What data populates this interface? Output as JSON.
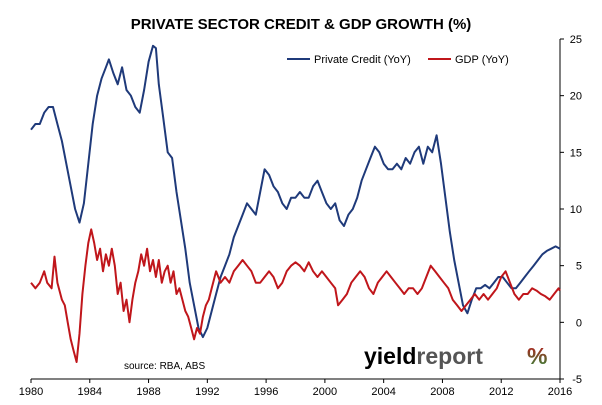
{
  "chart_data": {
    "type": "line",
    "title": "PRIVATE SECTOR CREDIT & GDP GROWTH (%)",
    "xlabel": "",
    "ylabel": "",
    "x_ticks": [
      "1980",
      "1984",
      "1988",
      "1992",
      "1996",
      "2000",
      "2004",
      "2008",
      "2012",
      "2016"
    ],
    "y_ticks": [
      "25",
      "20",
      "15",
      "10",
      "5",
      "0",
      "-5"
    ],
    "xlim": [
      1980,
      2016
    ],
    "ylim": [
      -5,
      25
    ],
    "y_axis_position": "right",
    "grid": false,
    "legend_position": "top-right",
    "series": [
      {
        "name": "Private Credit (YoY)",
        "color": "#1f3a7a",
        "points": [
          [
            1980.0,
            17.0
          ],
          [
            1980.3,
            17.5
          ],
          [
            1980.6,
            17.5
          ],
          [
            1980.9,
            18.5
          ],
          [
            1981.2,
            19.0
          ],
          [
            1981.5,
            19.0
          ],
          [
            1981.8,
            17.5
          ],
          [
            1982.1,
            16.0
          ],
          [
            1982.4,
            14.0
          ],
          [
            1982.7,
            12.0
          ],
          [
            1983.0,
            10.0
          ],
          [
            1983.3,
            8.8
          ],
          [
            1983.6,
            10.5
          ],
          [
            1983.9,
            14.0
          ],
          [
            1984.2,
            17.5
          ],
          [
            1984.5,
            20.0
          ],
          [
            1984.8,
            21.5
          ],
          [
            1985.1,
            22.5
          ],
          [
            1985.3,
            23.2
          ],
          [
            1985.6,
            22.0
          ],
          [
            1985.9,
            21.0
          ],
          [
            1986.2,
            22.5
          ],
          [
            1986.5,
            20.5
          ],
          [
            1986.8,
            20.0
          ],
          [
            1987.1,
            19.0
          ],
          [
            1987.4,
            18.5
          ],
          [
            1987.7,
            20.5
          ],
          [
            1988.0,
            23.0
          ],
          [
            1988.3,
            24.4
          ],
          [
            1988.5,
            24.2
          ],
          [
            1988.7,
            21.0
          ],
          [
            1989.0,
            18.0
          ],
          [
            1989.3,
            15.0
          ],
          [
            1989.6,
            14.5
          ],
          [
            1989.9,
            11.5
          ],
          [
            1990.2,
            9.0
          ],
          [
            1990.5,
            6.5
          ],
          [
            1990.8,
            3.5
          ],
          [
            1991.1,
            1.5
          ],
          [
            1991.4,
            -0.5
          ],
          [
            1991.7,
            -1.3
          ],
          [
            1992.0,
            -0.5
          ],
          [
            1992.3,
            1.0
          ],
          [
            1992.6,
            2.5
          ],
          [
            1992.9,
            4.0
          ],
          [
            1993.2,
            5.0
          ],
          [
            1993.5,
            6.0
          ],
          [
            1993.8,
            7.5
          ],
          [
            1994.1,
            8.5
          ],
          [
            1994.4,
            9.5
          ],
          [
            1994.7,
            10.5
          ],
          [
            1995.0,
            10.0
          ],
          [
            1995.3,
            9.5
          ],
          [
            1995.6,
            11.5
          ],
          [
            1995.9,
            13.5
          ],
          [
            1996.2,
            13.0
          ],
          [
            1996.5,
            12.0
          ],
          [
            1996.8,
            11.5
          ],
          [
            1997.1,
            10.5
          ],
          [
            1997.4,
            10.0
          ],
          [
            1997.7,
            11.0
          ],
          [
            1998.0,
            11.0
          ],
          [
            1998.3,
            11.5
          ],
          [
            1998.6,
            11.0
          ],
          [
            1998.9,
            11.0
          ],
          [
            1999.2,
            12.0
          ],
          [
            1999.5,
            12.5
          ],
          [
            1999.8,
            11.5
          ],
          [
            2000.1,
            10.5
          ],
          [
            2000.4,
            10.0
          ],
          [
            2000.7,
            10.5
          ],
          [
            2001.0,
            9.0
          ],
          [
            2001.3,
            8.5
          ],
          [
            2001.6,
            9.5
          ],
          [
            2001.9,
            10.0
          ],
          [
            2002.2,
            11.0
          ],
          [
            2002.5,
            12.5
          ],
          [
            2002.8,
            13.5
          ],
          [
            2003.1,
            14.5
          ],
          [
            2003.4,
            15.5
          ],
          [
            2003.7,
            15.0
          ],
          [
            2004.0,
            14.0
          ],
          [
            2004.3,
            13.5
          ],
          [
            2004.6,
            13.5
          ],
          [
            2004.9,
            14.0
          ],
          [
            2005.2,
            13.5
          ],
          [
            2005.5,
            14.5
          ],
          [
            2005.8,
            14.0
          ],
          [
            2006.1,
            15.0
          ],
          [
            2006.4,
            15.5
          ],
          [
            2006.7,
            14.0
          ],
          [
            2007.0,
            15.5
          ],
          [
            2007.3,
            15.0
          ],
          [
            2007.6,
            16.5
          ],
          [
            2007.9,
            14.0
          ],
          [
            2008.2,
            11.0
          ],
          [
            2008.5,
            8.0
          ],
          [
            2008.8,
            5.5
          ],
          [
            2009.1,
            3.5
          ],
          [
            2009.4,
            1.5
          ],
          [
            2009.7,
            0.8
          ],
          [
            2010.0,
            2.0
          ],
          [
            2010.3,
            3.0
          ],
          [
            2010.6,
            3.0
          ],
          [
            2010.9,
            3.3
          ],
          [
            2011.2,
            3.0
          ],
          [
            2011.5,
            3.5
          ],
          [
            2011.8,
            4.0
          ],
          [
            2012.1,
            4.0
          ],
          [
            2012.4,
            3.5
          ],
          [
            2012.7,
            3.0
          ],
          [
            2013.0,
            3.0
          ],
          [
            2013.3,
            3.5
          ],
          [
            2013.6,
            4.0
          ],
          [
            2013.9,
            4.5
          ],
          [
            2014.2,
            5.0
          ],
          [
            2014.5,
            5.5
          ],
          [
            2014.8,
            6.0
          ],
          [
            2015.1,
            6.3
          ],
          [
            2015.4,
            6.5
          ],
          [
            2015.7,
            6.7
          ],
          [
            2016.0,
            6.5
          ]
        ]
      },
      {
        "name": "GDP (YoY)",
        "color": "#c0161b",
        "points": [
          [
            1980.0,
            3.5
          ],
          [
            1980.3,
            3.0
          ],
          [
            1980.6,
            3.5
          ],
          [
            1980.9,
            4.5
          ],
          [
            1981.1,
            3.5
          ],
          [
            1981.4,
            3.0
          ],
          [
            1981.6,
            5.8
          ],
          [
            1981.8,
            3.5
          ],
          [
            1982.1,
            2.0
          ],
          [
            1982.3,
            1.5
          ],
          [
            1982.5,
            0.0
          ],
          [
            1982.7,
            -1.5
          ],
          [
            1982.9,
            -2.5
          ],
          [
            1983.1,
            -3.5
          ],
          [
            1983.3,
            -1.0
          ],
          [
            1983.5,
            2.5
          ],
          [
            1983.7,
            5.0
          ],
          [
            1983.9,
            7.0
          ],
          [
            1984.1,
            8.2
          ],
          [
            1984.3,
            7.0
          ],
          [
            1984.5,
            5.5
          ],
          [
            1984.7,
            6.5
          ],
          [
            1984.9,
            4.5
          ],
          [
            1985.1,
            6.0
          ],
          [
            1985.3,
            5.0
          ],
          [
            1985.5,
            6.5
          ],
          [
            1985.7,
            5.0
          ],
          [
            1985.9,
            2.5
          ],
          [
            1986.1,
            3.5
          ],
          [
            1986.3,
            1.0
          ],
          [
            1986.5,
            2.0
          ],
          [
            1986.7,
            0.0
          ],
          [
            1986.9,
            2.0
          ],
          [
            1987.1,
            3.5
          ],
          [
            1987.3,
            4.5
          ],
          [
            1987.5,
            6.0
          ],
          [
            1987.7,
            5.0
          ],
          [
            1987.9,
            6.5
          ],
          [
            1988.1,
            4.5
          ],
          [
            1988.3,
            5.5
          ],
          [
            1988.5,
            4.0
          ],
          [
            1988.7,
            5.5
          ],
          [
            1988.9,
            3.5
          ],
          [
            1989.1,
            4.5
          ],
          [
            1989.3,
            5.0
          ],
          [
            1989.5,
            3.5
          ],
          [
            1989.7,
            4.5
          ],
          [
            1989.9,
            2.5
          ],
          [
            1990.1,
            3.0
          ],
          [
            1990.3,
            2.0
          ],
          [
            1990.5,
            1.0
          ],
          [
            1990.7,
            0.5
          ],
          [
            1990.9,
            -0.5
          ],
          [
            1991.1,
            -1.5
          ],
          [
            1991.3,
            -0.5
          ],
          [
            1991.5,
            -1.0
          ],
          [
            1991.7,
            0.5
          ],
          [
            1991.9,
            1.5
          ],
          [
            1992.1,
            2.0
          ],
          [
            1992.3,
            3.0
          ],
          [
            1992.6,
            4.5
          ],
          [
            1992.9,
            3.5
          ],
          [
            1993.2,
            4.0
          ],
          [
            1993.5,
            3.5
          ],
          [
            1993.8,
            4.5
          ],
          [
            1994.1,
            5.0
          ],
          [
            1994.4,
            5.5
          ],
          [
            1994.7,
            5.0
          ],
          [
            1995.0,
            4.5
          ],
          [
            1995.3,
            3.5
          ],
          [
            1995.6,
            3.5
          ],
          [
            1995.9,
            4.0
          ],
          [
            1996.2,
            4.5
          ],
          [
            1996.5,
            4.0
          ],
          [
            1996.8,
            3.0
          ],
          [
            1997.1,
            3.5
          ],
          [
            1997.4,
            4.5
          ],
          [
            1997.7,
            5.0
          ],
          [
            1998.0,
            5.3
          ],
          [
            1998.3,
            5.0
          ],
          [
            1998.6,
            4.5
          ],
          [
            1998.9,
            5.3
          ],
          [
            1999.2,
            4.5
          ],
          [
            1999.5,
            4.0
          ],
          [
            1999.8,
            4.5
          ],
          [
            2000.1,
            4.0
          ],
          [
            2000.4,
            3.5
          ],
          [
            2000.7,
            3.0
          ],
          [
            2000.9,
            1.5
          ],
          [
            2001.2,
            2.0
          ],
          [
            2001.5,
            2.5
          ],
          [
            2001.8,
            3.5
          ],
          [
            2002.1,
            4.0
          ],
          [
            2002.4,
            4.5
          ],
          [
            2002.7,
            4.0
          ],
          [
            2003.0,
            3.0
          ],
          [
            2003.3,
            2.5
          ],
          [
            2003.6,
            3.5
          ],
          [
            2003.9,
            4.0
          ],
          [
            2004.2,
            4.5
          ],
          [
            2004.5,
            4.0
          ],
          [
            2004.8,
            3.5
          ],
          [
            2005.1,
            3.0
          ],
          [
            2005.4,
            2.5
          ],
          [
            2005.7,
            3.0
          ],
          [
            2006.0,
            3.0
          ],
          [
            2006.3,
            2.5
          ],
          [
            2006.6,
            3.0
          ],
          [
            2006.9,
            4.0
          ],
          [
            2007.2,
            5.0
          ],
          [
            2007.5,
            4.5
          ],
          [
            2007.8,
            4.0
          ],
          [
            2008.1,
            3.5
          ],
          [
            2008.4,
            3.0
          ],
          [
            2008.7,
            2.0
          ],
          [
            2009.0,
            1.5
          ],
          [
            2009.3,
            1.0
          ],
          [
            2009.6,
            1.5
          ],
          [
            2009.9,
            2.0
          ],
          [
            2010.2,
            2.5
          ],
          [
            2010.5,
            2.0
          ],
          [
            2010.8,
            2.5
          ],
          [
            2011.1,
            2.0
          ],
          [
            2011.4,
            2.5
          ],
          [
            2011.7,
            3.0
          ],
          [
            2012.0,
            4.0
          ],
          [
            2012.3,
            4.5
          ],
          [
            2012.6,
            3.5
          ],
          [
            2012.9,
            2.5
          ],
          [
            2013.2,
            2.0
          ],
          [
            2013.5,
            2.5
          ],
          [
            2013.8,
            2.5
          ],
          [
            2014.1,
            3.0
          ],
          [
            2014.4,
            2.8
          ],
          [
            2014.7,
            2.5
          ],
          [
            2015.0,
            2.3
          ],
          [
            2015.3,
            2.0
          ],
          [
            2015.6,
            2.5
          ],
          [
            2015.9,
            3.0
          ],
          [
            2016.0,
            2.8
          ]
        ]
      }
    ],
    "source": "source: RBA, ABS"
  },
  "logo": {
    "word_a": "yield",
    "word_b": "report",
    "symbol": "%",
    "color_a": "#000000",
    "color_b": "#555555",
    "symbol_color_top": "#c0161b",
    "symbol_color_bottom": "#2e8b3a"
  }
}
